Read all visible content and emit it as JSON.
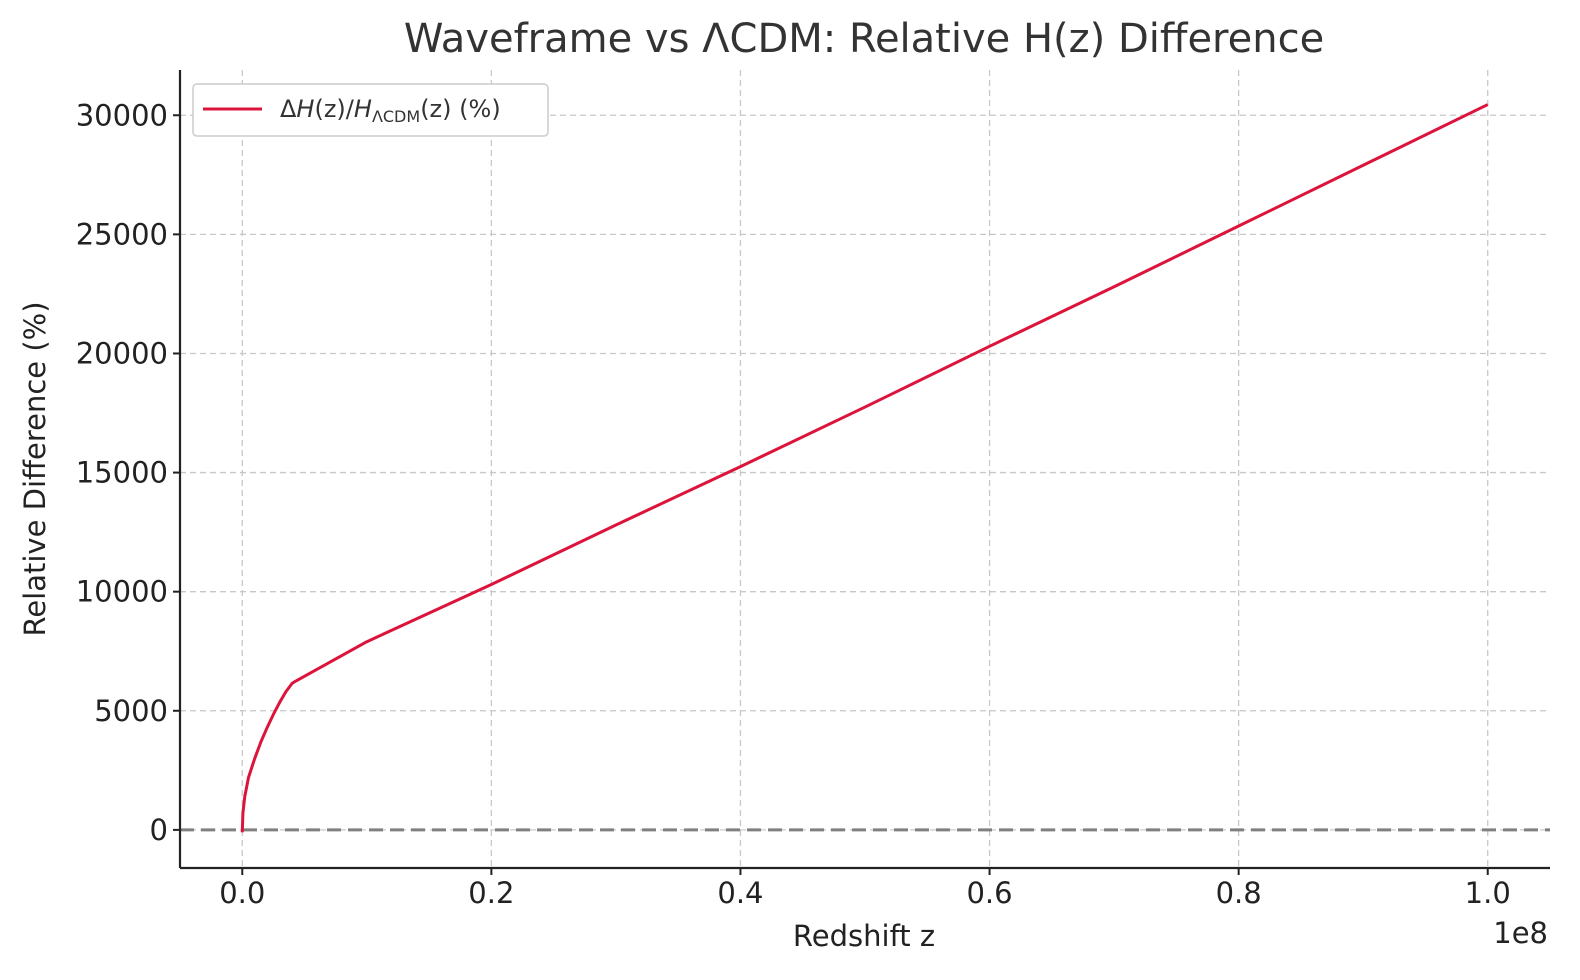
{
  "chart_data": {
    "type": "line",
    "title": "Waveframe vs ΛCDM: Relative H(z) Difference",
    "xlabel": "Redshift z",
    "ylabel": "Relative Difference (%)",
    "x_offset_label": "1e8",
    "xlim": [
      -5000000,
      105000000
    ],
    "ylim": [
      -1600,
      31900
    ],
    "x_ticks": [
      0,
      20000000,
      40000000,
      60000000,
      80000000,
      100000000
    ],
    "x_tick_labels": [
      "0.0",
      "0.2",
      "0.4",
      "0.6",
      "0.8",
      "1.0"
    ],
    "y_ticks": [
      0,
      5000,
      10000,
      15000,
      20000,
      25000,
      30000
    ],
    "y_tick_labels": [
      "0",
      "5000",
      "10000",
      "15000",
      "20000",
      "25000",
      "30000"
    ],
    "grid": true,
    "legend_position": "top-left",
    "series": [
      {
        "name": "ΔH(z)/HΛCDM(z) (%)",
        "legend": {
          "delta": "Δ",
          "h1": "H",
          "paren1": "(z)/",
          "h2": "H",
          "sub": "ΛCDM",
          "paren2": "(z)",
          "unit": " (%)"
        },
        "color": "#dc143c",
        "x": [
          0,
          50000,
          200000,
          500000,
          1000000,
          1500000,
          2000000,
          2500000,
          3000000,
          3500000,
          4000000,
          4300000,
          10000000,
          20000000,
          30000000,
          40000000,
          50000000,
          60000000,
          70000000,
          80000000,
          90000000,
          100000000
        ],
        "y": [
          -100,
          700,
          1400,
          2200,
          3000,
          3700,
          4300,
          4850,
          5350,
          5800,
          6150,
          6250,
          7900,
          10300,
          12800,
          15250,
          17750,
          20300,
          22800,
          25350,
          27900,
          30450
        ]
      }
    ],
    "reference_line": {
      "y": 0,
      "color": "#808080",
      "style": "dashed"
    }
  }
}
